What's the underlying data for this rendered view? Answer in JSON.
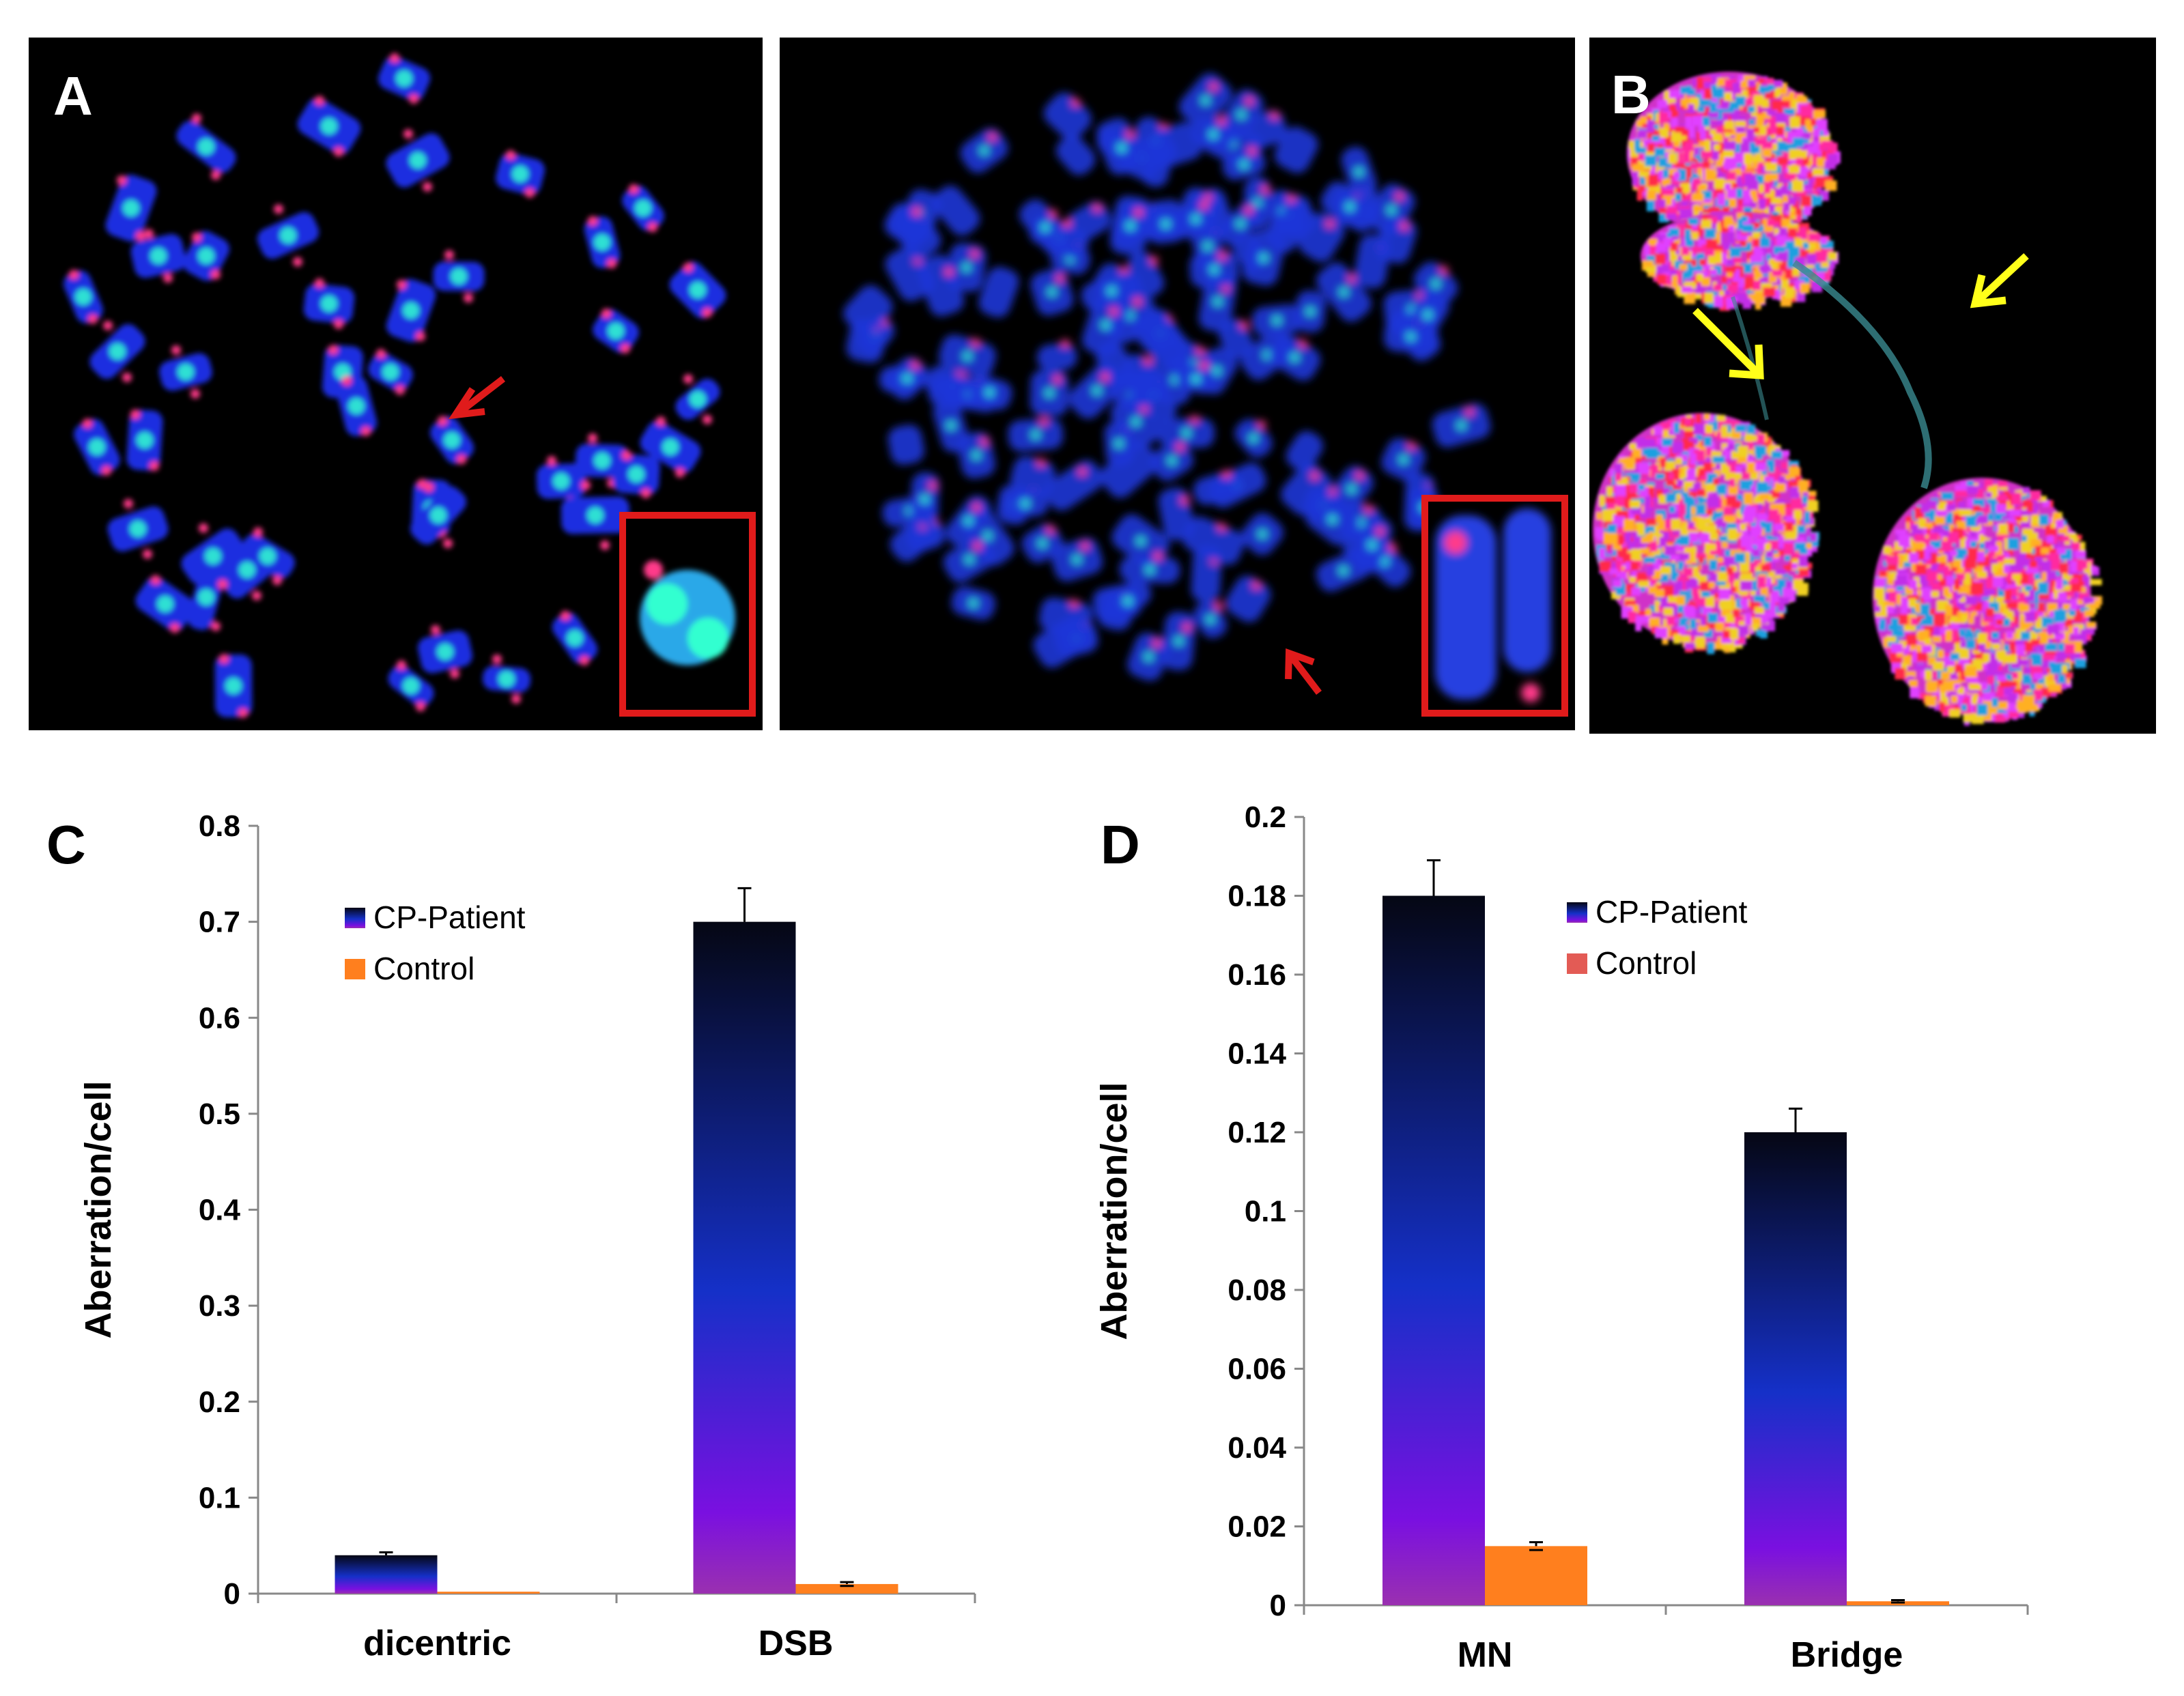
{
  "panels": {
    "a_label": "A",
    "b_label": "B",
    "c_label": "C",
    "d_label": "D"
  },
  "colors": {
    "patient_top": "#050714",
    "patient_mid": "#1530c8",
    "patient_low": "#7a10e0",
    "patient_base": "#9a30b0",
    "control_c": "#ff7f1e",
    "control_d_legend": "#e35b55",
    "control_d_bar": "#ff7f1e",
    "dapi_blue": "#1a2ee0",
    "telomere_red": "#ff3a8a",
    "centromere_green": "#33ffd0",
    "arrow_red": "#e01b1b",
    "arrow_yellow": "#ffff1a"
  },
  "chart_data": [
    {
      "type": "bar",
      "panel": "C",
      "categories": [
        "dicentric",
        "DSB"
      ],
      "series": [
        {
          "name": "CP-Patient",
          "values": [
            0.04,
            0.7
          ],
          "errors": [
            0.003,
            0.035
          ]
        },
        {
          "name": "Control",
          "values": [
            0.002,
            0.01
          ],
          "errors": [
            0.0,
            0.002
          ]
        }
      ],
      "ylabel": "Aberration/cell",
      "ylim": [
        0,
        0.8
      ],
      "yticks": [
        "0",
        "0.1",
        "0.2",
        "0.3",
        "0.4",
        "0.5",
        "0.6",
        "0.7",
        "0.8"
      ],
      "ytick_values": [
        0,
        0.1,
        0.2,
        0.3,
        0.4,
        0.5,
        0.6,
        0.7,
        0.8
      ],
      "legend": "top-left",
      "grid": false
    },
    {
      "type": "bar",
      "panel": "D",
      "categories": [
        "MN",
        "Bridge"
      ],
      "series": [
        {
          "name": "CP-Patient",
          "values": [
            0.18,
            0.12
          ],
          "errors": [
            0.009,
            0.006
          ]
        },
        {
          "name": "Control",
          "values": [
            0.015,
            0.001
          ],
          "errors": [
            0.001,
            0.0003
          ]
        }
      ],
      "ylabel": "Aberration/cell",
      "ylim": [
        0,
        0.2
      ],
      "yticks": [
        "0",
        "0.02",
        "0.04",
        "0.06",
        "0.08",
        "0.1",
        "0.12",
        "0.14",
        "0.16",
        "0.18",
        "0.2"
      ],
      "ytick_values": [
        0,
        0.02,
        0.04,
        0.06,
        0.08,
        0.1,
        0.12,
        0.14,
        0.16,
        0.18,
        0.2
      ],
      "legend": "top-center",
      "grid": false
    }
  ]
}
